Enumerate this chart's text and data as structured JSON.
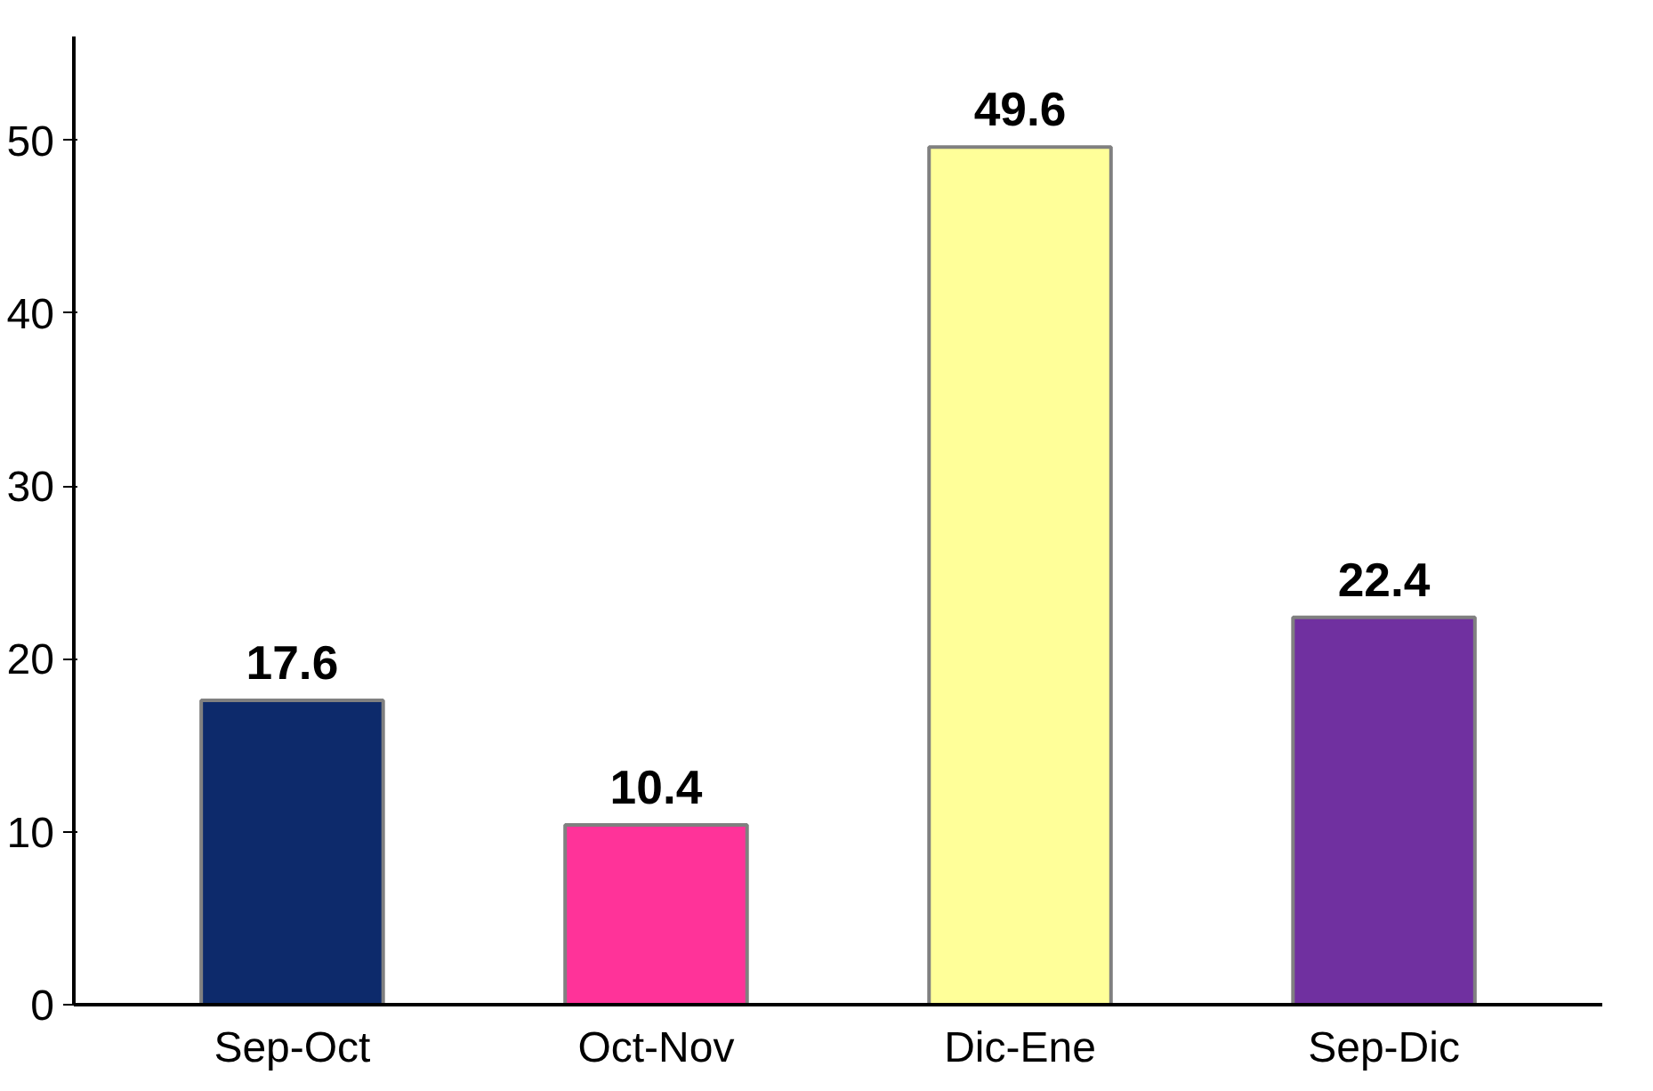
{
  "chart_data": {
    "type": "bar",
    "categories": [
      "Sep-Oct",
      "Oct-Nov",
      "Dic-Ene",
      "Sep-Dic"
    ],
    "values": [
      17.6,
      10.4,
      49.6,
      22.4
    ],
    "colors": [
      "#0d2a6b",
      "#ff3399",
      "#ffff99",
      "#7030a0"
    ],
    "ylim": [
      0,
      56
    ],
    "yticks": [
      0,
      10,
      20,
      30,
      40,
      50
    ],
    "grid": false,
    "data_labels": true
  }
}
